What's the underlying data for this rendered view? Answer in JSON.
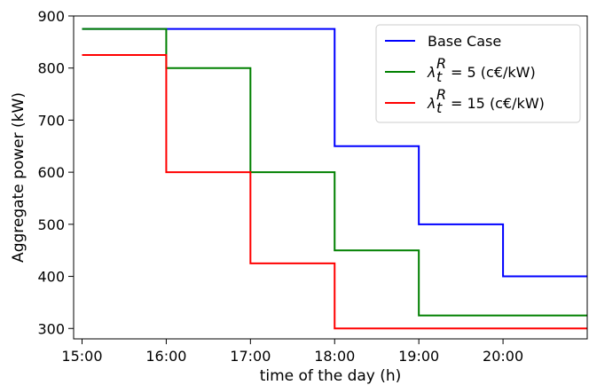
{
  "chart_data": {
    "type": "line",
    "step": "post",
    "xlabel": "time of the day (h)",
    "ylabel": "Aggregate power (kW)",
    "xlim": [
      14.9,
      21.0
    ],
    "ylim": [
      280,
      900
    ],
    "x_ticks": [
      {
        "value": 15,
        "label": "15:00"
      },
      {
        "value": 16,
        "label": "16:00"
      },
      {
        "value": 17,
        "label": "17:00"
      },
      {
        "value": 18,
        "label": "18:00"
      },
      {
        "value": 19,
        "label": "19:00"
      },
      {
        "value": 20,
        "label": "20:00"
      }
    ],
    "y_ticks": [
      {
        "value": 300,
        "label": "300"
      },
      {
        "value": 400,
        "label": "400"
      },
      {
        "value": 500,
        "label": "500"
      },
      {
        "value": 600,
        "label": "600"
      },
      {
        "value": 700,
        "label": "700"
      },
      {
        "value": 800,
        "label": "800"
      },
      {
        "value": 900,
        "label": "900"
      }
    ],
    "grid": false,
    "legend_position": "top-right",
    "series": [
      {
        "name": "Base Case",
        "color": "#0000ff",
        "x": [
          15,
          16,
          17,
          18,
          19,
          20,
          21
        ],
        "y": [
          875,
          875,
          875,
          650,
          500,
          400,
          400
        ]
      },
      {
        "name": "= 5 (c€/kW)",
        "color": "#008000",
        "x": [
          15,
          16,
          17,
          18,
          19,
          20,
          21
        ],
        "y": [
          875,
          800,
          600,
          450,
          325,
          325,
          325
        ]
      },
      {
        "name": "= 15 (c€/kW)",
        "color": "#ff0000",
        "x": [
          15,
          16,
          17,
          18,
          19,
          20,
          21
        ],
        "y": [
          825,
          600,
          425,
          300,
          300,
          300,
          300
        ]
      }
    ],
    "legend_symbol": {
      "base": "λ",
      "sub": "t",
      "sup": "R"
    }
  }
}
